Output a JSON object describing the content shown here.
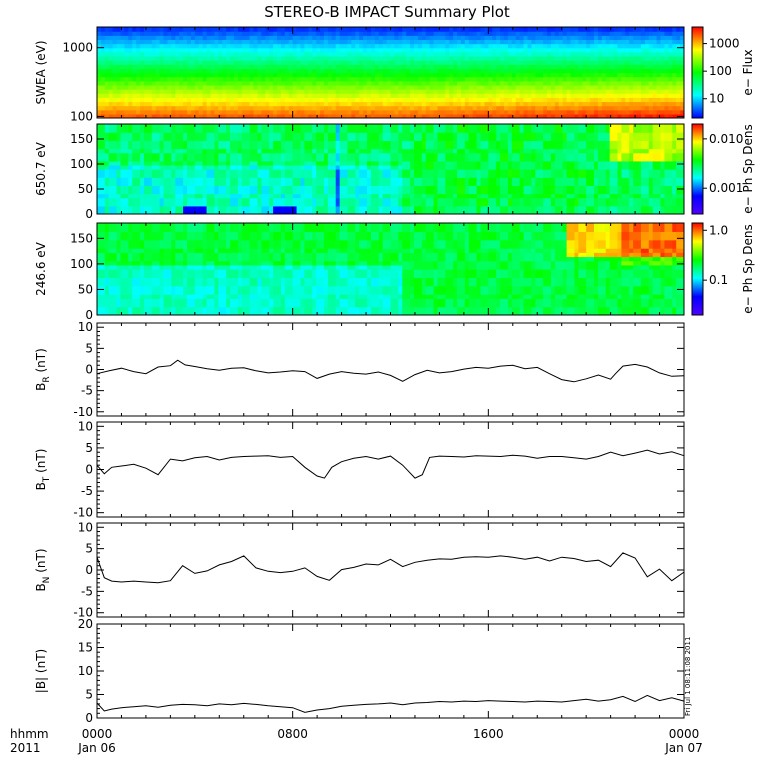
{
  "title": "STEREO-B IMPACT Summary Plot",
  "time_axis": {
    "label_line1": "hhmm",
    "label_line2": "2011",
    "ticks": [
      {
        "hours": 0,
        "line1": "0000",
        "line2": "Jan 06"
      },
      {
        "hours": 8,
        "line1": "0800",
        "line2": ""
      },
      {
        "hours": 16,
        "line1": "1600",
        "line2": ""
      },
      {
        "hours": 24,
        "line1": "0000",
        "line2": "Jan 07"
      }
    ],
    "range_hours": [
      0,
      24
    ]
  },
  "stamp": "Fri Jul 1 08:11:08 2011",
  "chart_data": [
    {
      "type": "heatmap",
      "panel": "swea",
      "ylabel": "SWEA (eV)",
      "yscale": "log",
      "ylim": [
        95,
        2000
      ],
      "yticks": [
        {
          "value": 100,
          "label": "100"
        },
        {
          "value": 1000,
          "label": "1000"
        }
      ],
      "colorbar": {
        "label": "e− Flux",
        "scale": "log",
        "range": [
          2,
          4000
        ],
        "colors": [
          "#0000ff",
          "#00ffff",
          "#00ff00",
          "#ffff00",
          "#ff0000"
        ],
        "ticks": [
          {
            "value": 10,
            "label": "10"
          },
          {
            "value": 100,
            "label": "100"
          },
          {
            "value": 1000,
            "label": "1000"
          }
        ]
      }
    },
    {
      "type": "heatmap",
      "panel": "pad650",
      "ylabel": "650.7 eV",
      "yscale": "linear",
      "ylim": [
        0,
        180
      ],
      "yticks": [
        {
          "value": 0,
          "label": "0"
        },
        {
          "value": 50,
          "label": "50"
        },
        {
          "value": 100,
          "label": "100"
        },
        {
          "value": 150,
          "label": "150"
        }
      ],
      "colorbar": {
        "label": "e− Ph Sp Dens",
        "scale": "log",
        "range": [
          0.0003,
          0.02
        ],
        "colors": [
          "#5000ff",
          "#0000ff",
          "#00ffff",
          "#00ff00",
          "#ffff00",
          "#ff0000"
        ],
        "ticks": [
          {
            "value": 0.001,
            "label": "0.001"
          },
          {
            "value": 0.01,
            "label": "0.010"
          }
        ]
      }
    },
    {
      "type": "heatmap",
      "panel": "pad246",
      "ylabel": "246.6 eV",
      "yscale": "linear",
      "ylim": [
        0,
        180
      ],
      "yticks": [
        {
          "value": 0,
          "label": "0"
        },
        {
          "value": 50,
          "label": "50"
        },
        {
          "value": 100,
          "label": "100"
        },
        {
          "value": 150,
          "label": "150"
        }
      ],
      "colorbar": {
        "label": "e− Ph Sp Dens",
        "scale": "log",
        "range": [
          0.02,
          1.4
        ],
        "colors": [
          "#5000ff",
          "#0000ff",
          "#00ffff",
          "#00ff00",
          "#ffff00",
          "#ff0000"
        ],
        "ticks": [
          {
            "value": 0.1,
            "label": "0.1"
          },
          {
            "value": 1.0,
            "label": "1.0"
          }
        ]
      }
    },
    {
      "type": "line",
      "panel": "br",
      "ylabel_main": "B",
      "ylabel_sub": "R",
      "ylabel_unit": " (nT)",
      "ylim": [
        -11,
        11
      ],
      "yticks": [
        -10,
        -5,
        0,
        5,
        10
      ],
      "x": [
        0,
        0.5,
        1,
        1.5,
        2,
        2.5,
        3,
        3.3,
        3.6,
        4,
        4.5,
        5,
        5.5,
        6,
        6.5,
        7,
        7.5,
        8,
        8.5,
        9,
        9.5,
        10,
        10.5,
        11,
        11.5,
        12,
        12.5,
        13,
        13.5,
        14,
        14.5,
        15,
        15.5,
        16,
        16.5,
        17,
        17.5,
        18,
        18.5,
        19,
        19.5,
        20,
        20.5,
        21,
        21.2,
        21.5,
        22,
        22.5,
        23,
        23.5,
        24
      ],
      "y": [
        -1.0,
        -0.3,
        0.3,
        -0.5,
        -1.0,
        0.6,
        0.9,
        2.2,
        1.1,
        0.7,
        0.2,
        -0.2,
        0.3,
        0.4,
        -0.3,
        -0.8,
        -0.6,
        -0.3,
        -0.5,
        -2.1,
        -1.1,
        -0.5,
        -0.9,
        -1.1,
        -0.6,
        -1.4,
        -2.8,
        -1.2,
        -0.2,
        -0.8,
        -0.5,
        0.1,
        0.5,
        0.3,
        0.8,
        1.0,
        0.2,
        0.5,
        -1.0,
        -2.4,
        -2.9,
        -2.2,
        -1.3,
        -2.3,
        -1.0,
        0.8,
        1.2,
        0.6,
        -0.8,
        -1.6,
        -1.5
      ]
    },
    {
      "type": "line",
      "panel": "bt",
      "ylabel_main": "B",
      "ylabel_sub": "T",
      "ylabel_unit": " (nT)",
      "ylim": [
        -11,
        11
      ],
      "yticks": [
        -10,
        -5,
        0,
        5,
        10
      ],
      "x": [
        0,
        0.3,
        0.6,
        1,
        1.5,
        2,
        2.5,
        3,
        3.5,
        4,
        4.5,
        5,
        5.5,
        6,
        6.5,
        7,
        7.5,
        8,
        8.5,
        9,
        9.3,
        9.6,
        10,
        10.5,
        11,
        11.5,
        12,
        12.5,
        13,
        13.3,
        13.6,
        14,
        14.5,
        15,
        15.5,
        16,
        16.5,
        17,
        17.5,
        18,
        18.5,
        19,
        19.5,
        20,
        20.5,
        21,
        21.5,
        22,
        22.5,
        23,
        23.5,
        24
      ],
      "y": [
        1.0,
        -1.0,
        0.5,
        0.8,
        1.2,
        0.3,
        -1.2,
        2.4,
        2.0,
        2.7,
        3.0,
        2.2,
        2.8,
        3.0,
        3.1,
        3.2,
        2.8,
        3.0,
        0.5,
        -1.5,
        -2.0,
        0.5,
        1.8,
        2.6,
        3.0,
        2.4,
        3.1,
        1.0,
        -2.0,
        -1.2,
        2.8,
        3.1,
        3.0,
        2.9,
        3.2,
        3.1,
        3.0,
        3.3,
        3.1,
        2.6,
        3.0,
        3.0,
        2.7,
        2.4,
        3.0,
        4.0,
        3.2,
        3.8,
        4.5,
        3.6,
        4.1,
        3.2
      ]
    },
    {
      "type": "line",
      "panel": "bn",
      "ylabel_main": "B",
      "ylabel_sub": "N",
      "ylabel_unit": " (nT)",
      "ylim": [
        -11,
        11
      ],
      "yticks": [
        -10,
        -5,
        0,
        5,
        10
      ],
      "x": [
        0,
        0.3,
        0.6,
        1,
        1.5,
        2,
        2.5,
        3,
        3.5,
        4,
        4.5,
        5,
        5.5,
        6,
        6.5,
        7,
        7.5,
        8,
        8.5,
        9,
        9.5,
        10,
        10.5,
        11,
        11.5,
        12,
        12.5,
        13,
        13.5,
        14,
        14.5,
        15,
        15.5,
        16,
        16.5,
        17,
        17.5,
        18,
        18.5,
        19,
        19.5,
        20,
        20.5,
        21,
        21.5,
        22,
        22.5,
        23,
        23.5,
        24
      ],
      "y": [
        3.0,
        -1.8,
        -2.6,
        -2.8,
        -2.6,
        -2.8,
        -3.0,
        -2.5,
        1.0,
        -0.8,
        -0.2,
        1.2,
        2.0,
        3.3,
        0.5,
        -0.3,
        -0.6,
        -0.3,
        0.5,
        -1.5,
        -2.4,
        0.1,
        0.6,
        1.4,
        1.2,
        2.5,
        0.8,
        1.8,
        2.3,
        2.6,
        2.5,
        3.0,
        3.1,
        3.0,
        3.3,
        3.0,
        2.5,
        3.0,
        2.1,
        3.0,
        2.7,
        2.0,
        2.3,
        0.8,
        4.0,
        2.8,
        -1.6,
        0.2,
        -2.5,
        -0.5
      ]
    },
    {
      "type": "line",
      "panel": "bmag",
      "ylabel_main": "|B|",
      "ylabel_sub": "",
      "ylabel_unit": " (nT)",
      "ylim": [
        0,
        20
      ],
      "yticks": [
        0,
        5,
        10,
        15,
        20
      ],
      "x": [
        0,
        0.3,
        0.6,
        1,
        1.5,
        2,
        2.5,
        3,
        3.5,
        4,
        4.5,
        5,
        5.5,
        6,
        6.5,
        7,
        7.5,
        8,
        8.5,
        9,
        9.5,
        10,
        10.5,
        11,
        11.5,
        12,
        12.5,
        13,
        13.5,
        14,
        14.5,
        15,
        15.5,
        16,
        16.5,
        17,
        17.5,
        18,
        18.5,
        19,
        19.5,
        20,
        20.5,
        21,
        21.5,
        22,
        22.5,
        23,
        23.5,
        24
      ],
      "y": [
        3.2,
        1.5,
        1.9,
        2.2,
        2.4,
        2.6,
        2.3,
        2.7,
        2.9,
        2.8,
        2.6,
        3.0,
        2.8,
        3.1,
        2.9,
        2.6,
        2.4,
        2.2,
        1.2,
        1.7,
        2.0,
        2.5,
        2.7,
        2.9,
        3.0,
        3.2,
        2.8,
        3.2,
        3.3,
        3.5,
        3.4,
        3.6,
        3.5,
        3.7,
        3.6,
        3.5,
        3.4,
        3.6,
        3.5,
        3.4,
        3.7,
        4.0,
        3.6,
        3.9,
        4.6,
        3.5,
        4.8,
        3.7,
        4.3,
        3.6
      ]
    }
  ]
}
